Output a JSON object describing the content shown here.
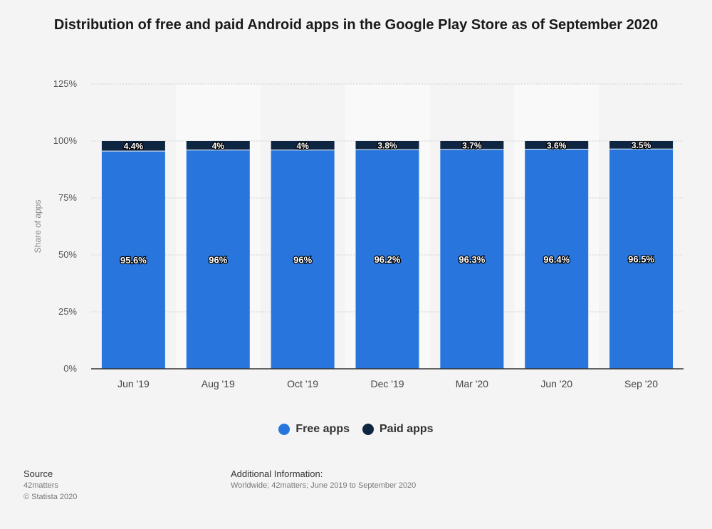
{
  "title": "Distribution of free and paid Android apps in the Google Play Store as of September 2020",
  "chart_data": {
    "type": "bar",
    "stacked": true,
    "categories": [
      "Jun '19",
      "Aug '19",
      "Oct '19",
      "Dec '19",
      "Mar '20",
      "Jun '20",
      "Sep '20"
    ],
    "series": [
      {
        "name": "Free apps",
        "values": [
          95.6,
          96,
          96,
          96.2,
          96.3,
          96.4,
          96.5
        ],
        "labels": [
          "95.6%",
          "96%",
          "96%",
          "96.2%",
          "96.3%",
          "96.4%",
          "96.5%"
        ],
        "color": "#2876dd"
      },
      {
        "name": "Paid apps",
        "values": [
          4.4,
          4,
          4,
          3.8,
          3.7,
          3.6,
          3.5
        ],
        "labels": [
          "4.4%",
          "4%",
          "4%",
          "3.8%",
          "3.7%",
          "3.6%",
          "3.5%"
        ],
        "color": "#0f2642"
      }
    ],
    "ylabel": "Share of apps",
    "xlabel": "",
    "ylim": [
      0,
      125
    ],
    "yticks": [
      0,
      25,
      50,
      75,
      100,
      125
    ],
    "ytick_labels": [
      "0%",
      "25%",
      "50%",
      "75%",
      "100%",
      "125%"
    ],
    "grid": true,
    "legend_position": "bottom-center"
  },
  "footer": {
    "source_heading": "Source",
    "source_lines": [
      "42matters",
      "© Statista 2020"
    ],
    "info_heading": "Additional Information:",
    "info_text": "Worldwide; 42matters; June 2019 to September 2020"
  }
}
